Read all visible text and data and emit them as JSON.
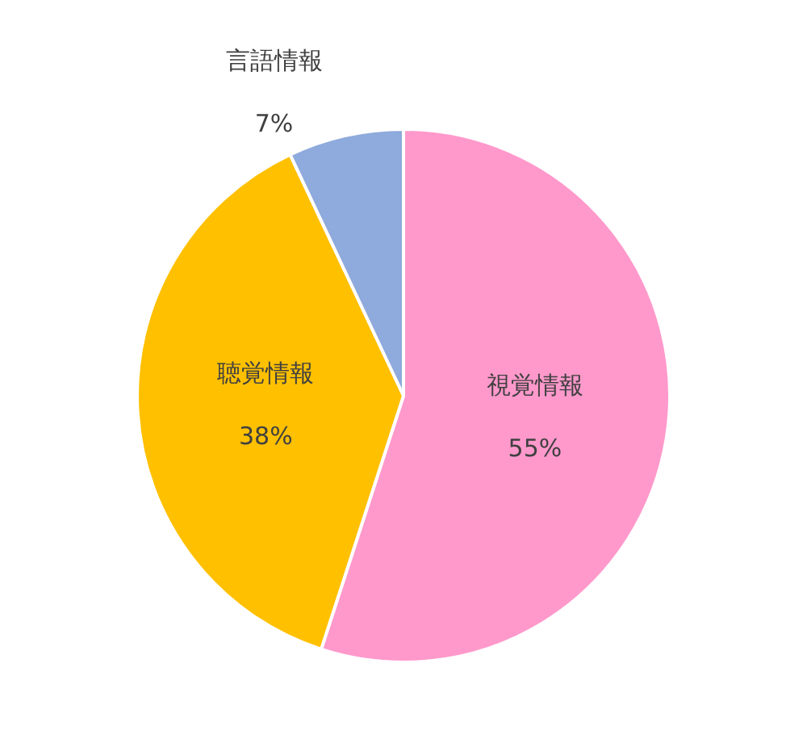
{
  "chart_data": {
    "type": "pie",
    "categories": [
      "視覚情報",
      "聴覚情報",
      "言語情報"
    ],
    "values": [
      55,
      38,
      7
    ],
    "value_labels": [
      "55%",
      "38%",
      "7%"
    ],
    "colors": [
      "#ff99cc",
      "#ffc000",
      "#8faadc"
    ],
    "legend": false
  }
}
